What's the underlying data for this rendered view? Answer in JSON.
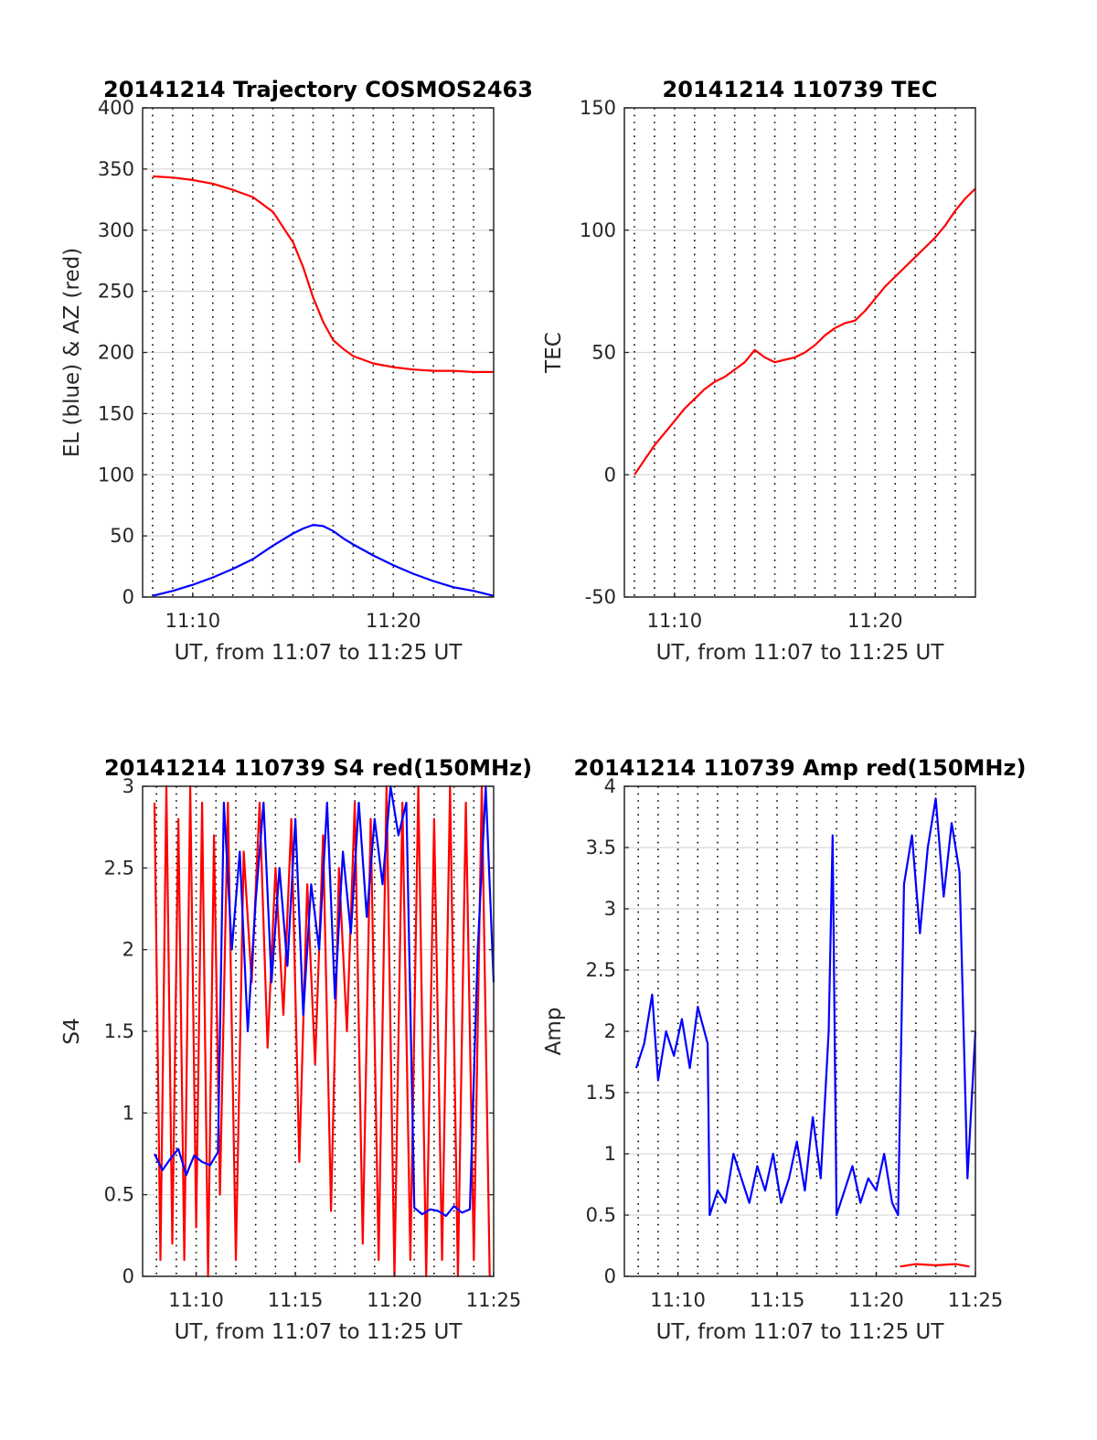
{
  "colors": {
    "red": "#ff0000",
    "blue": "#0000ff",
    "axis": "#262626",
    "grid": "#d9d9d9"
  },
  "chart_data": [
    {
      "type": "line",
      "title": "20141214 Trajectory COSMOS2463",
      "xlabel": "UT, from 11:07 to 11:25 UT",
      "ylabel": "EL (blue) & AZ (red)",
      "xlim": [
        7.5,
        25
      ],
      "ylim": [
        0,
        400
      ],
      "xticks": [
        {
          "value": 10,
          "label": "11:10"
        },
        {
          "value": 20,
          "label": "11:20"
        }
      ],
      "yticks": [
        0,
        50,
        100,
        150,
        200,
        250,
        300,
        350,
        400
      ],
      "xgrid_minutes": [
        8,
        9,
        10,
        11,
        12,
        13,
        14,
        15,
        16,
        17,
        18,
        19,
        20,
        21,
        22,
        23,
        24
      ],
      "grid": true,
      "series": [
        {
          "color": "#ff0000",
          "x": [
            8,
            9,
            10,
            11,
            12,
            13,
            14,
            15,
            15.5,
            16,
            16.5,
            17,
            17.5,
            18,
            18.5,
            19,
            20,
            21,
            22,
            23,
            24,
            25
          ],
          "y": [
            344,
            343,
            341,
            338,
            333,
            327,
            315,
            290,
            270,
            245,
            225,
            210,
            203,
            197,
            194,
            191,
            188,
            186,
            185,
            185,
            184,
            184
          ]
        },
        {
          "color": "#0000ff",
          "x": [
            8,
            9,
            10,
            11,
            12,
            13,
            14,
            15,
            15.5,
            16,
            16.5,
            17,
            17.5,
            18,
            19,
            20,
            21,
            22,
            23,
            24,
            25
          ],
          "y": [
            1,
            5,
            10,
            16,
            23,
            31,
            42,
            52,
            56,
            59,
            58,
            54,
            48,
            43,
            34,
            26,
            19,
            13,
            8,
            5,
            1
          ]
        }
      ]
    },
    {
      "type": "line",
      "title": "20141214 110739 TEC",
      "xlabel": "UT, from 11:07 to 11:25 UT",
      "ylabel": "TEC",
      "xlim": [
        7.5,
        25
      ],
      "ylim": [
        -50,
        150
      ],
      "xticks": [
        {
          "value": 10,
          "label": "11:10"
        },
        {
          "value": 20,
          "label": "11:20"
        }
      ],
      "yticks": [
        -50,
        0,
        50,
        100,
        150
      ],
      "xgrid_minutes": [
        8,
        9,
        10,
        11,
        12,
        13,
        14,
        15,
        16,
        17,
        18,
        19,
        20,
        21,
        22,
        23,
        24
      ],
      "grid": true,
      "series": [
        {
          "color": "#ff0000",
          "x": [
            8,
            8.5,
            9,
            9.5,
            10,
            10.5,
            11,
            11.5,
            12,
            12.5,
            13,
            13.5,
            14,
            14.5,
            15,
            15.5,
            16,
            16.5,
            17,
            17.5,
            18,
            18.5,
            19,
            19.5,
            20,
            20.5,
            21,
            21.5,
            22,
            22.5,
            23,
            23.5,
            24,
            24.5,
            25
          ],
          "y": [
            0,
            6,
            12,
            17,
            22,
            27,
            31,
            35,
            38,
            40,
            43,
            46,
            51,
            48,
            46,
            47,
            48,
            50,
            53,
            57,
            60,
            62,
            63,
            67,
            72,
            77,
            81,
            85,
            89,
            93,
            97,
            102,
            108,
            113,
            117
          ]
        }
      ]
    },
    {
      "type": "line",
      "title": "20141214 110739 S4 red(150MHz)",
      "xlabel": "UT, from 11:07 to 11:25 UT",
      "ylabel": "S4",
      "xlim": [
        7.3,
        25
      ],
      "ylim": [
        0,
        3
      ],
      "xticks": [
        {
          "value": 10,
          "label": "11:10"
        },
        {
          "value": 15,
          "label": "11:15"
        },
        {
          "value": 20,
          "label": "11:20"
        },
        {
          "value": 25,
          "label": "11:25"
        }
      ],
      "yticks": [
        0,
        0.5,
        1,
        1.5,
        2,
        2.5,
        3
      ],
      "xgrid_minutes": [
        8,
        9,
        10,
        11,
        12,
        13,
        14,
        15,
        16,
        17,
        18,
        19,
        20,
        21,
        22,
        23,
        24
      ],
      "grid": true,
      "series": [
        {
          "color": "#ff0000",
          "x": [
            7.9,
            8.2,
            8.5,
            8.8,
            9.1,
            9.4,
            9.7,
            10.0,
            10.3,
            10.6,
            10.9,
            11.2,
            11.6,
            12.0,
            12.4,
            12.8,
            13.2,
            13.6,
            14.0,
            14.4,
            14.8,
            15.2,
            15.6,
            16.0,
            16.4,
            16.8,
            17.2,
            17.6,
            18.0,
            18.4,
            18.8,
            19.2,
            19.6,
            20.0,
            20.4,
            20.8,
            21.2,
            21.6,
            22.0,
            22.4,
            22.8,
            23.2,
            23.6,
            24.0,
            24.4,
            24.8
          ],
          "y": [
            2.9,
            0.1,
            3.0,
            0.2,
            2.8,
            0.1,
            3.0,
            0.3,
            2.9,
            0.0,
            2.7,
            0.5,
            2.9,
            0.1,
            2.6,
            1.8,
            2.9,
            1.4,
            2.5,
            1.6,
            2.8,
            0.7,
            2.4,
            1.3,
            2.7,
            0.4,
            2.5,
            1.5,
            2.9,
            0.2,
            2.8,
            0.1,
            3.0,
            0.0,
            2.9,
            0.1,
            3.0,
            0.0,
            2.8,
            0.1,
            3.0,
            0.0,
            2.9,
            0.1,
            3.0,
            0.0
          ]
        },
        {
          "color": "#0000ff",
          "x": [
            7.9,
            8.3,
            8.7,
            9.1,
            9.5,
            9.9,
            10.3,
            10.7,
            11.1,
            11.4,
            11.8,
            12.2,
            12.6,
            13.0,
            13.4,
            13.8,
            14.2,
            14.6,
            15.0,
            15.4,
            15.8,
            16.2,
            16.6,
            17.0,
            17.4,
            17.8,
            18.2,
            18.6,
            19.0,
            19.4,
            19.8,
            20.2,
            20.6,
            21.0,
            21.4,
            21.8,
            22.2,
            22.6,
            23.0,
            23.4,
            23.8,
            24.2,
            24.6,
            25.0
          ],
          "y": [
            0.75,
            0.65,
            0.72,
            0.78,
            0.62,
            0.74,
            0.7,
            0.68,
            0.76,
            2.9,
            2.0,
            2.6,
            1.5,
            2.3,
            2.9,
            1.8,
            2.5,
            1.9,
            2.8,
            1.6,
            2.4,
            2.0,
            2.9,
            1.7,
            2.6,
            2.1,
            2.9,
            2.2,
            2.8,
            2.4,
            3.0,
            2.7,
            2.9,
            0.42,
            0.38,
            0.41,
            0.4,
            0.37,
            0.43,
            0.39,
            0.41,
            2.0,
            3.0,
            1.8
          ]
        }
      ]
    },
    {
      "type": "line",
      "title": "20141214 110739 Amp red(150MHz)",
      "xlabel": "UT, from 11:07 to 11:25 UT",
      "ylabel": "Amp",
      "xlim": [
        7.3,
        25
      ],
      "ylim": [
        0,
        4
      ],
      "xticks": [
        {
          "value": 10,
          "label": "11:10"
        },
        {
          "value": 15,
          "label": "11:15"
        },
        {
          "value": 20,
          "label": "11:20"
        },
        {
          "value": 25,
          "label": "11:25"
        }
      ],
      "yticks": [
        0,
        0.5,
        1,
        1.5,
        2,
        2.5,
        3,
        3.5,
        4
      ],
      "xgrid_minutes": [
        8,
        9,
        10,
        11,
        12,
        13,
        14,
        15,
        16,
        17,
        18,
        19,
        20,
        21,
        22,
        23,
        24
      ],
      "grid": true,
      "series": [
        {
          "color": "#ff0000",
          "x": [
            21.2,
            22,
            23,
            24,
            24.7
          ],
          "y": [
            0.08,
            0.1,
            0.09,
            0.1,
            0.08
          ]
        },
        {
          "color": "#0000ff",
          "x": [
            7.9,
            8.3,
            8.7,
            9.0,
            9.4,
            9.8,
            10.2,
            10.6,
            11.0,
            11.5,
            11.6,
            12.0,
            12.4,
            12.8,
            13.2,
            13.6,
            14.0,
            14.4,
            14.8,
            15.2,
            15.6,
            16.0,
            16.4,
            16.8,
            17.2,
            17.6,
            17.8,
            18.0,
            18.4,
            18.8,
            19.2,
            19.6,
            20.0,
            20.4,
            20.8,
            21.1,
            21.4,
            21.8,
            22.2,
            22.6,
            23.0,
            23.4,
            23.8,
            24.2,
            24.6,
            25.0
          ],
          "y": [
            1.7,
            1.9,
            2.3,
            1.6,
            2.0,
            1.8,
            2.1,
            1.7,
            2.2,
            1.9,
            0.5,
            0.7,
            0.6,
            1.0,
            0.8,
            0.6,
            0.9,
            0.7,
            1.0,
            0.6,
            0.8,
            1.1,
            0.7,
            1.3,
            0.8,
            2.0,
            3.6,
            0.5,
            0.7,
            0.9,
            0.6,
            0.8,
            0.7,
            1.0,
            0.6,
            0.5,
            3.2,
            3.6,
            2.8,
            3.5,
            3.9,
            3.1,
            3.7,
            3.3,
            0.8,
            2.0
          ]
        }
      ]
    }
  ]
}
